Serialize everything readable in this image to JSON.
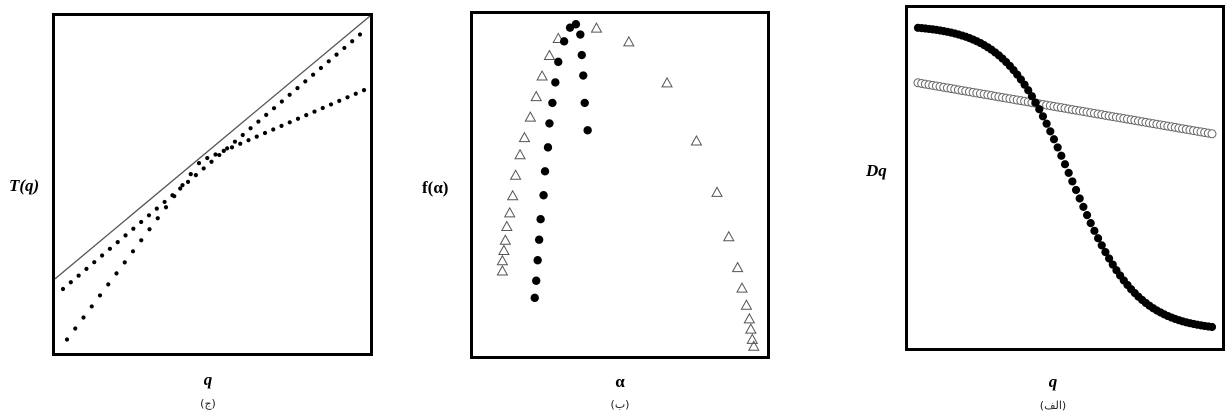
{
  "chart_data": [
    {
      "type": "scatter",
      "xlabel": "q",
      "ylabel": "T(q)",
      "caption": "(ج)",
      "grid": false,
      "series": [
        {
          "marker": "line",
          "color": "#555555",
          "points": [
            [
              0,
              0.78
            ],
            [
              1,
              0.0
            ]
          ]
        },
        {
          "marker": "small-dot",
          "color": "#000000",
          "points": [
            [
              0,
              0.81
            ],
            [
              1,
              0.055
            ]
          ]
        },
        {
          "marker": "small-dot",
          "color": "#000000",
          "points": [
            [
              0,
              0.96
            ],
            [
              0.45,
              0.43
            ],
            [
              1,
              0.22
            ]
          ]
        }
      ]
    },
    {
      "type": "scatter",
      "xlabel": "α",
      "ylabel": "f(α)",
      "caption": "(ب)",
      "grid": false,
      "series": [
        {
          "marker": "triangle-open",
          "color": "#555555",
          "points": [
            [
              0.1,
              0.75
            ],
            [
              0.1,
              0.72
            ],
            [
              0.105,
              0.69
            ],
            [
              0.11,
              0.66
            ],
            [
              0.115,
              0.62
            ],
            [
              0.125,
              0.58
            ],
            [
              0.135,
              0.53
            ],
            [
              0.145,
              0.47
            ],
            [
              0.16,
              0.41
            ],
            [
              0.175,
              0.36
            ],
            [
              0.195,
              0.3
            ],
            [
              0.215,
              0.24
            ],
            [
              0.235,
              0.18
            ],
            [
              0.26,
              0.12
            ],
            [
              0.29,
              0.07
            ],
            [
              0.42,
              0.04
            ],
            [
              0.53,
              0.08
            ],
            [
              0.66,
              0.2
            ],
            [
              0.76,
              0.37
            ],
            [
              0.83,
              0.52
            ],
            [
              0.87,
              0.65
            ],
            [
              0.9,
              0.74
            ],
            [
              0.915,
              0.8
            ],
            [
              0.93,
              0.85
            ],
            [
              0.94,
              0.89
            ],
            [
              0.945,
              0.92
            ],
            [
              0.95,
              0.95
            ],
            [
              0.955,
              0.97
            ]
          ]
        },
        {
          "marker": "dot",
          "color": "#000000",
          "points": [
            [
              0.21,
              0.83
            ],
            [
              0.215,
              0.78
            ],
            [
              0.22,
              0.72
            ],
            [
              0.225,
              0.66
            ],
            [
              0.23,
              0.6
            ],
            [
              0.24,
              0.53
            ],
            [
              0.245,
              0.46
            ],
            [
              0.255,
              0.39
            ],
            [
              0.26,
              0.32
            ],
            [
              0.27,
              0.26
            ],
            [
              0.28,
              0.2
            ],
            [
              0.29,
              0.14
            ],
            [
              0.31,
              0.08
            ],
            [
              0.33,
              0.04
            ],
            [
              0.35,
              0.03
            ],
            [
              0.365,
              0.06
            ],
            [
              0.37,
              0.12
            ],
            [
              0.375,
              0.18
            ],
            [
              0.38,
              0.26
            ],
            [
              0.39,
              0.34
            ]
          ]
        }
      ]
    },
    {
      "type": "scatter",
      "xlabel": "q",
      "ylabel": "Dq",
      "caption": "(الف)",
      "grid": false,
      "series": [
        {
          "marker": "dot",
          "color": "#000000",
          "points": "sigmoid-decreasing"
        },
        {
          "marker": "circle-open",
          "color": "#666666",
          "points": "slow-decreasing"
        }
      ]
    }
  ]
}
